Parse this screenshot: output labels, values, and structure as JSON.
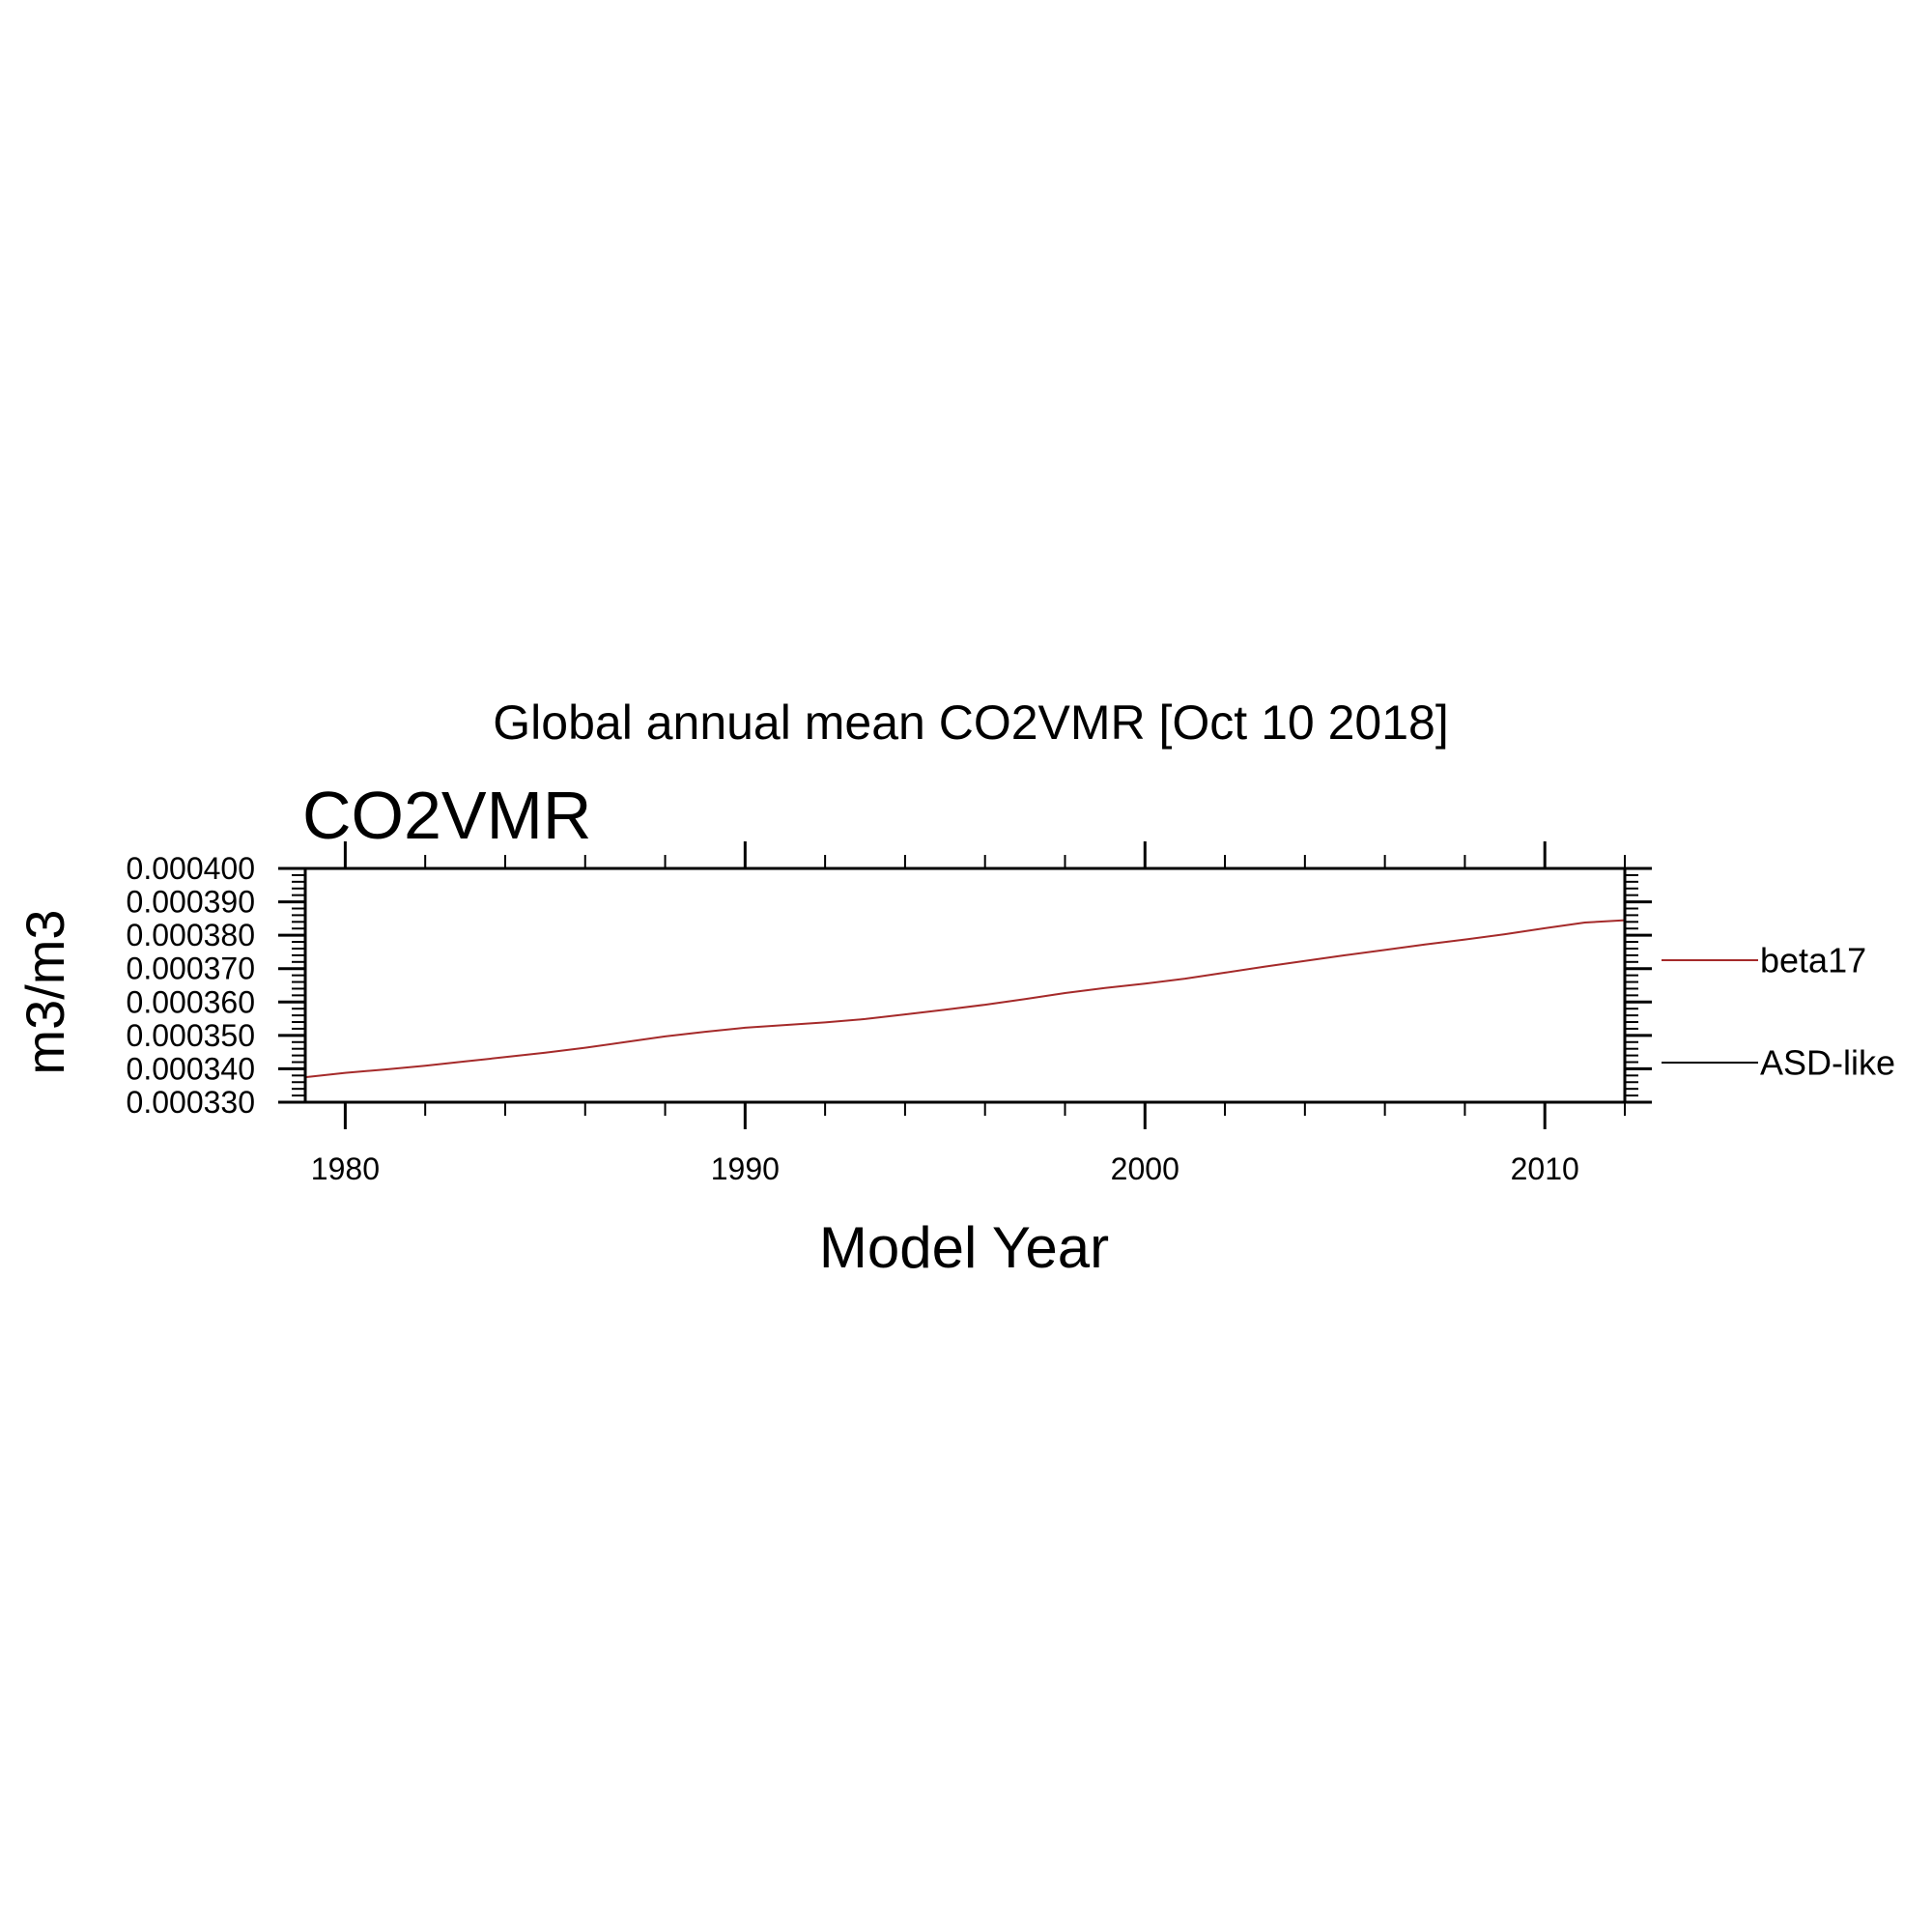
{
  "chart_data": {
    "type": "line",
    "title": "Global annual mean CO2VMR [Oct 10 2018]",
    "subtitle": "CO2VMR",
    "xlabel": "Model Year",
    "ylabel": "m3/m3",
    "xlim": [
      1979,
      2012
    ],
    "ylim": [
      0.00033,
      0.0004
    ],
    "x_ticks": [
      1980,
      1990,
      2000,
      2010
    ],
    "x_tick_labels": [
      "1980",
      "1990",
      "2000",
      "2010"
    ],
    "y_ticks": [
      0.00033,
      0.00034,
      0.00035,
      0.00036,
      0.00037,
      0.00038,
      0.00039,
      0.0004
    ],
    "y_tick_labels": [
      "0.000330",
      "0.000340",
      "0.000350",
      "0.000360",
      "0.000370",
      "0.000380",
      "0.000390",
      "0.000400"
    ],
    "grid": false,
    "legend_position": "right",
    "series": [
      {
        "name": "beta17",
        "color": "#a52a2a",
        "x": [
          1979,
          1980,
          1981,
          1982,
          1983,
          1984,
          1985,
          1986,
          1987,
          1988,
          1989,
          1990,
          1991,
          1992,
          1993,
          1994,
          1995,
          1996,
          1997,
          1998,
          1999,
          2000,
          2001,
          2002,
          2003,
          2004,
          2005,
          2006,
          2007,
          2008,
          2009,
          2010,
          2011,
          2012
        ],
        "y": [
          0.0003375,
          0.0003388,
          0.0003398,
          0.0003409,
          0.0003422,
          0.0003435,
          0.0003448,
          0.0003463,
          0.000348,
          0.0003497,
          0.0003511,
          0.0003523,
          0.0003531,
          0.0003539,
          0.0003549,
          0.0003563,
          0.0003577,
          0.0003592,
          0.0003609,
          0.0003627,
          0.0003642,
          0.0003655,
          0.000367,
          0.0003688,
          0.0003706,
          0.0003723,
          0.000374,
          0.0003756,
          0.0003772,
          0.0003787,
          0.0003803,
          0.0003821,
          0.0003838,
          0.0003845
        ]
      },
      {
        "name": "ASD-like",
        "color": "#000000",
        "x": [],
        "y": []
      }
    ]
  }
}
